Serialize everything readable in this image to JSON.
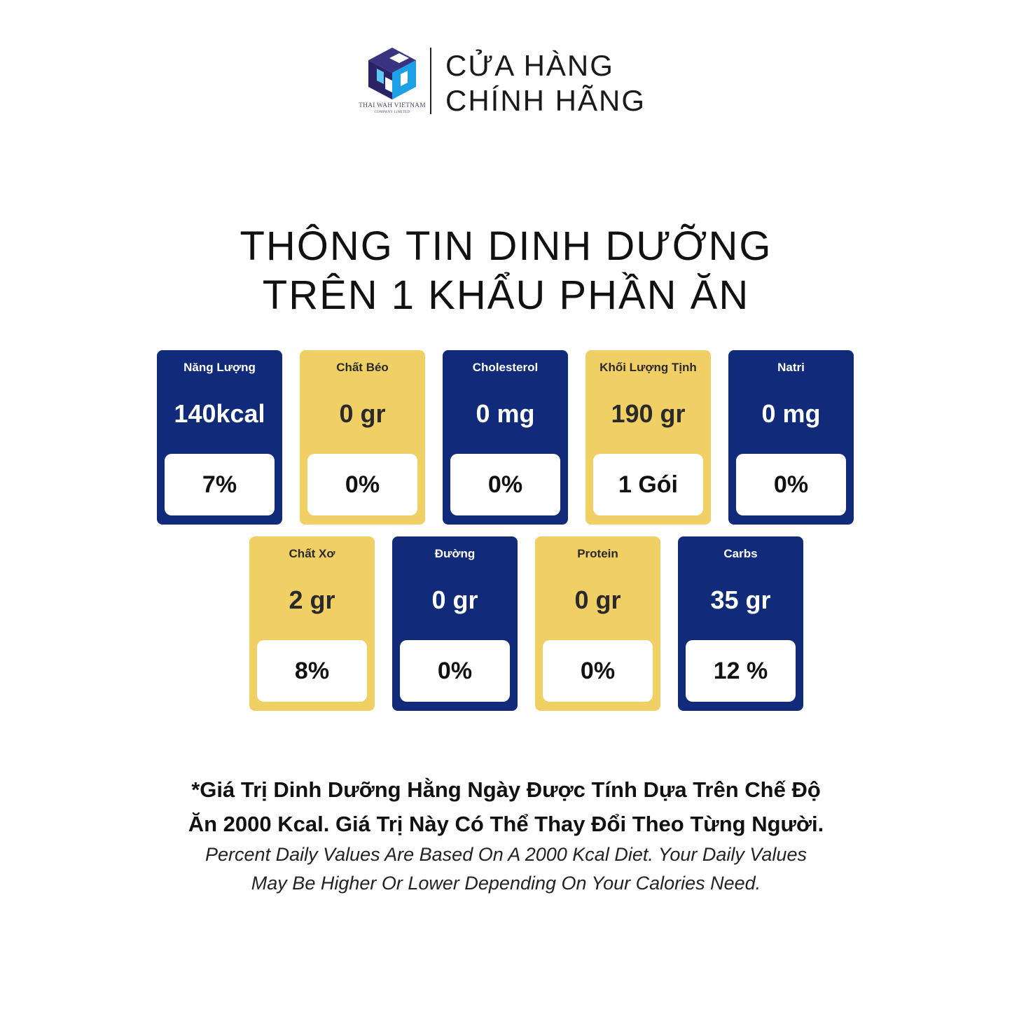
{
  "brand": {
    "company_line1": "THAI WAH VIETNAM",
    "company_line2": "COMPANY LIMITED",
    "store_line1": "CỬA HÀNG",
    "store_line2": "CHÍNH HÃNG"
  },
  "title": {
    "line1": "THÔNG TIN DINH DƯỠNG",
    "line2": "TRÊN 1 KHẨU PHẦN ĂN"
  },
  "nutrients": [
    {
      "label": "Năng Lượng",
      "value": "140kcal",
      "percent": "7%",
      "color": "navy"
    },
    {
      "label": "Chất Béo",
      "value": "0 gr",
      "percent": "0%",
      "color": "yellow"
    },
    {
      "label": "Cholesterol",
      "value": "0 mg",
      "percent": "0%",
      "color": "navy"
    },
    {
      "label": "Khối Lượng Tịnh",
      "value": "190 gr",
      "percent": "1 Gói",
      "color": "yellow"
    },
    {
      "label": "Natri",
      "value": "0 mg",
      "percent": "0%",
      "color": "navy"
    },
    {
      "label": "Chất Xơ",
      "value": "2 gr",
      "percent": "8%",
      "color": "yellow"
    },
    {
      "label": "Đường",
      "value": "0 gr",
      "percent": "0%",
      "color": "navy"
    },
    {
      "label": "Protein",
      "value": "0 gr",
      "percent": "0%",
      "color": "yellow"
    },
    {
      "label": "Carbs",
      "value": "35 gr",
      "percent": "12 %",
      "color": "navy"
    }
  ],
  "colors": {
    "navy": "#112a7a",
    "yellow": "#f0cf64"
  },
  "footnote": {
    "vi_line1": "*Giá Trị Dinh Dưỡng Hằng Ngày Được Tính Dựa Trên Chế Độ",
    "vi_line2": "Ăn 2000 Kcal. Giá Trị Này Có Thể Thay Đổi Theo Từng Người.",
    "en_line1": "Percent Daily Values Are Based On A 2000 Kcal Diet. Your Daily Values",
    "en_line2": "May Be Higher Or Lower Depending On Your Calories Need."
  }
}
